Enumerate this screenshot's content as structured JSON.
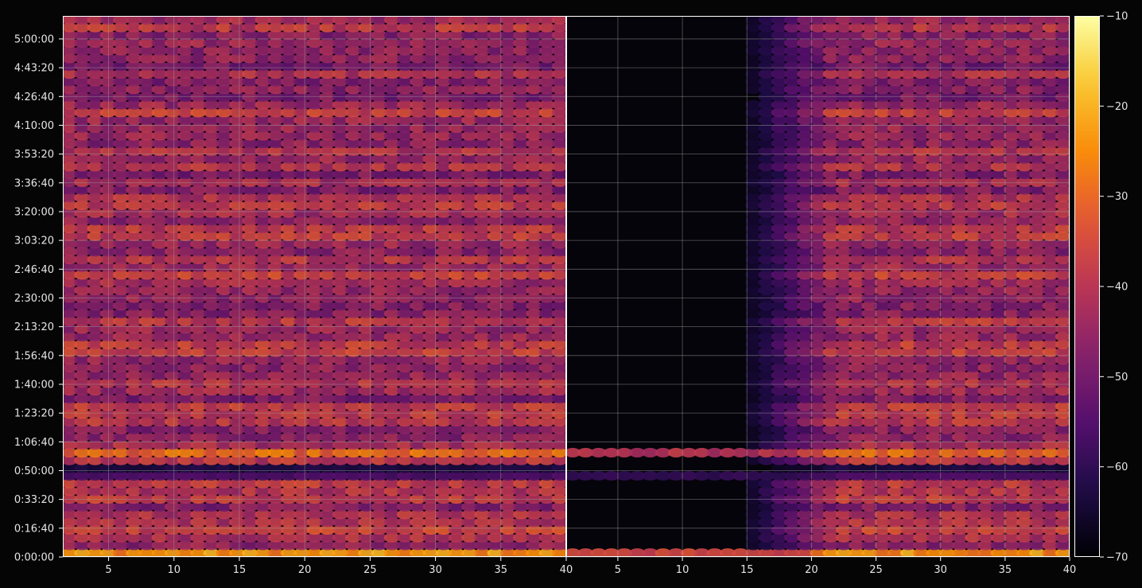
{
  "chart_data": {
    "type": "heatmap",
    "panels": [
      {
        "name": "",
        "x_range": [
          1.5,
          40
        ],
        "x_ticks": [
          5,
          10,
          15,
          20,
          25,
          30,
          35,
          40
        ],
        "y_tick_labels": [
          "0:00:00",
          "0:16:40",
          "0:33:20",
          "0:50:00",
          "1:06:40",
          "1:23:20",
          "1:40:00",
          "1:56:40",
          "2:13:20",
          "2:30:00",
          "2:46:40",
          "3:03:20",
          "3:20:00",
          "3:36:40",
          "3:53:20",
          "4:10:00",
          "4:26:40",
          "4:43:20",
          "5:00:00"
        ],
        "left_onset": 1.5
      },
      {
        "name": "",
        "x_range": [
          1,
          40
        ],
        "x_ticks": [
          5,
          10,
          15,
          20,
          25,
          30,
          35,
          40
        ],
        "y_tick_labels": [],
        "left_onset": 14
      }
    ],
    "y_axis": {
      "min_seconds": 0,
      "max_seconds": 18800,
      "tick_step_seconds": 1000
    },
    "colorbar": {
      "colormap": "inferno",
      "min": -70,
      "max": -10,
      "ticks": [
        "−70",
        "−60",
        "−50",
        "−40",
        "−30",
        "−20",
        "−10"
      ]
    },
    "grid": true,
    "notable_rows_seconds": {
      "bright": [
        0,
        2890,
        3600
      ],
      "dark_gaps": [
        2930,
        3070
      ]
    }
  },
  "colors": {
    "background": "#050505",
    "grid": "#a0a0a0",
    "axis": "#ffffff",
    "text": "#e6e6e6"
  }
}
